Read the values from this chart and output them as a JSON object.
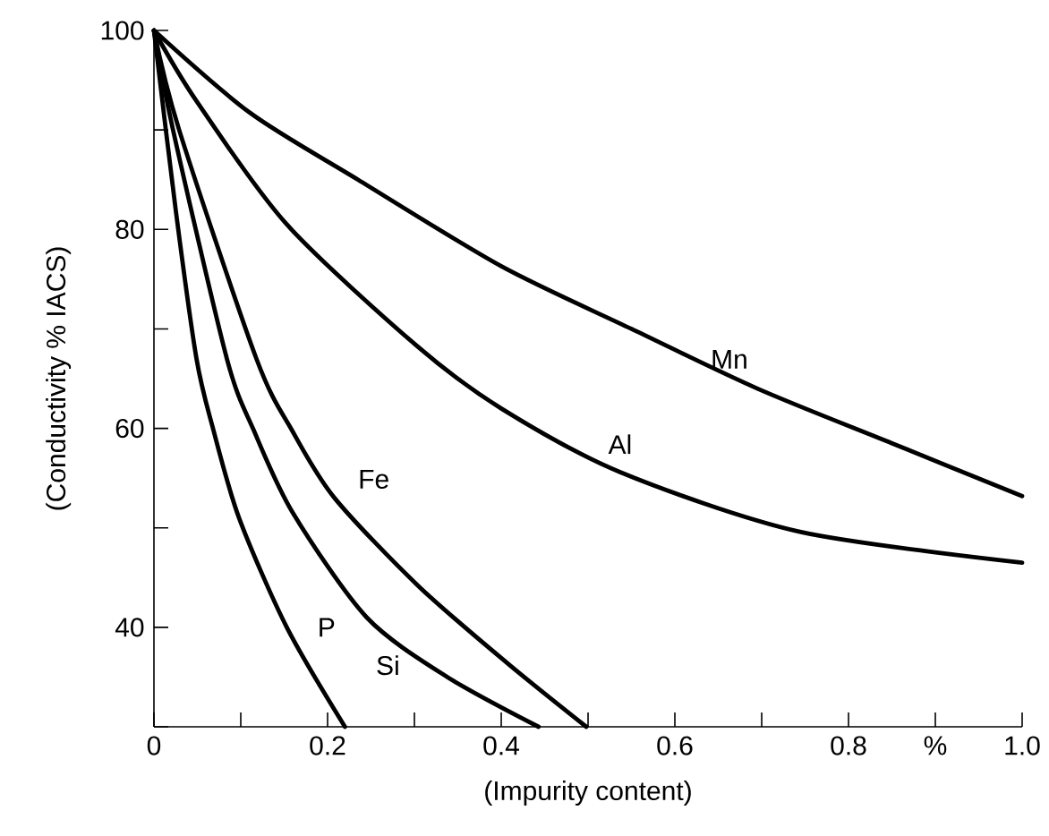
{
  "chart_data": {
    "type": "line",
    "xlabel": "(Impurity content)",
    "ylabel": "(Conductivity % IACS)",
    "xlim": [
      0,
      1.0
    ],
    "ylim": [
      30,
      100
    ],
    "xticks": [
      0,
      {
        "value": 0.1,
        "label": null
      },
      0.2,
      {
        "value": 0.3,
        "label": null
      },
      0.4,
      {
        "value": 0.5,
        "label": null
      },
      0.6,
      {
        "value": 0.7,
        "label": null
      },
      0.8,
      {
        "value": 0.9,
        "label": "%"
      },
      {
        "value": 1.0,
        "label": "1.0"
      }
    ],
    "yticks": [
      {
        "value": 30,
        "label": null
      },
      40,
      {
        "value": 50,
        "label": null
      },
      60,
      {
        "value": 70,
        "label": null
      },
      80,
      {
        "value": 90,
        "label": null
      },
      100
    ],
    "grid": false,
    "marker": "none",
    "line_style": "solid",
    "series": [
      {
        "name": "Mn",
        "color": "#000000",
        "x": [
          0,
          0.111,
          0.235,
          0.4,
          0.55,
          0.695,
          0.85,
          1.0
        ],
        "values": [
          100,
          91.7,
          85,
          76.3,
          70,
          64,
          58.5,
          53.2
        ]
      },
      {
        "name": "Al",
        "color": "#000000",
        "x": [
          0,
          0.049,
          0.153,
          0.304,
          0.4,
          0.537,
          0.744,
          1.0
        ],
        "values": [
          100,
          92.9,
          80.5,
          68.2,
          62,
          55.6,
          49.6,
          46.5
        ]
      },
      {
        "name": "Fe",
        "color": "#000000",
        "x": [
          0,
          0.029,
          0.118,
          0.159,
          0.208,
          0.304,
          0.407,
          0.498
        ],
        "values": [
          100,
          90,
          67,
          59.8,
          53,
          44.2,
          36.4,
          30
        ]
      },
      {
        "name": "Si",
        "color": "#000000",
        "x": [
          0,
          0.022,
          0.084,
          0.115,
          0.16,
          0.245,
          0.338,
          0.443
        ],
        "values": [
          100,
          90,
          67,
          59.8,
          51.5,
          41,
          35,
          30
        ]
      },
      {
        "name": "P",
        "color": "#000000",
        "x": [
          0,
          0.025,
          0.049,
          0.068,
          0.098,
          0.153,
          0.22
        ],
        "values": [
          100,
          82,
          67,
          60,
          51,
          40,
          30
        ]
      }
    ]
  }
}
